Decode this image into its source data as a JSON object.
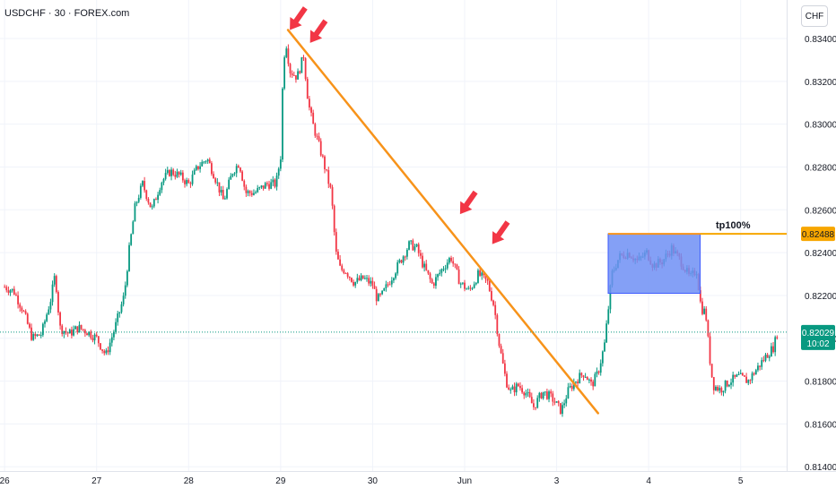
{
  "header": {
    "symbol_title": "USDCHF · 30 · FOREX.com",
    "currency": "CHF"
  },
  "chart_data": {
    "type": "candlestick",
    "y_ticks": [
      "0.81400",
      "0.81600",
      "0.81800",
      "0.82000",
      "0.82200",
      "0.82400",
      "0.82600",
      "0.82800",
      "0.83000",
      "0.83200",
      "0.83400"
    ],
    "ylim": [
      0.8138,
      0.8358
    ],
    "x_ticks": [
      "26",
      "27",
      "28",
      "29",
      "30",
      "Jun",
      "3",
      "4",
      "5"
    ],
    "x_tick_days": [
      0,
      1,
      2,
      3,
      4,
      5,
      6,
      7,
      8
    ],
    "xlim": [
      -0.05,
      8.5
    ],
    "grid": true,
    "colors": {
      "up": "#089981",
      "down": "#f23645",
      "trendline": "#f7931a",
      "arrows": "#f23645",
      "zone_fill": "#6f8ff5",
      "zone_border": "#f7931a",
      "price_badge": "#089981",
      "tp_badge": "#f7a600"
    },
    "close_path": [
      [
        0.0,
        0.8224
      ],
      [
        0.1,
        0.8222
      ],
      [
        0.2,
        0.8213
      ],
      [
        0.3,
        0.82
      ],
      [
        0.4,
        0.8202
      ],
      [
        0.5,
        0.8218
      ],
      [
        0.55,
        0.823
      ],
      [
        0.6,
        0.8205
      ],
      [
        0.7,
        0.8202
      ],
      [
        0.8,
        0.8205
      ],
      [
        0.9,
        0.8203
      ],
      [
        1.0,
        0.82
      ],
      [
        1.1,
        0.8192
      ],
      [
        1.2,
        0.8205
      ],
      [
        1.3,
        0.822
      ],
      [
        1.35,
        0.824
      ],
      [
        1.42,
        0.8262
      ],
      [
        1.5,
        0.8272
      ],
      [
        1.6,
        0.826
      ],
      [
        1.7,
        0.8273
      ],
      [
        1.8,
        0.8278
      ],
      [
        1.9,
        0.8276
      ],
      [
        2.0,
        0.8272
      ],
      [
        2.1,
        0.828
      ],
      [
        2.2,
        0.8284
      ],
      [
        2.28,
        0.8276
      ],
      [
        2.38,
        0.8264
      ],
      [
        2.48,
        0.8278
      ],
      [
        2.55,
        0.8282
      ],
      [
        2.62,
        0.8268
      ],
      [
        2.72,
        0.8268
      ],
      [
        2.85,
        0.8272
      ],
      [
        2.95,
        0.8272
      ],
      [
        3.0,
        0.8285
      ],
      [
        3.03,
        0.833
      ],
      [
        3.06,
        0.8338
      ],
      [
        3.1,
        0.8325
      ],
      [
        3.18,
        0.8322
      ],
      [
        3.25,
        0.8332
      ],
      [
        3.3,
        0.831
      ],
      [
        3.35,
        0.83
      ],
      [
        3.45,
        0.8285
      ],
      [
        3.55,
        0.8268
      ],
      [
        3.6,
        0.824
      ],
      [
        3.65,
        0.8232
      ],
      [
        3.7,
        0.8232
      ],
      [
        3.8,
        0.8226
      ],
      [
        3.9,
        0.8228
      ],
      [
        4.0,
        0.8225
      ],
      [
        4.05,
        0.8218
      ],
      [
        4.1,
        0.822
      ],
      [
        4.2,
        0.8228
      ],
      [
        4.3,
        0.8236
      ],
      [
        4.4,
        0.8244
      ],
      [
        4.48,
        0.8242
      ],
      [
        4.55,
        0.8234
      ],
      [
        4.65,
        0.8225
      ],
      [
        4.75,
        0.8232
      ],
      [
        4.85,
        0.8238
      ],
      [
        4.95,
        0.8226
      ],
      [
        5.05,
        0.8222
      ],
      [
        5.15,
        0.823
      ],
      [
        5.25,
        0.8226
      ],
      [
        5.32,
        0.8215
      ],
      [
        5.38,
        0.8196
      ],
      [
        5.45,
        0.818
      ],
      [
        5.5,
        0.8175
      ],
      [
        5.58,
        0.8178
      ],
      [
        5.66,
        0.8175
      ],
      [
        5.75,
        0.8168
      ],
      [
        5.85,
        0.8175
      ],
      [
        5.95,
        0.8172
      ],
      [
        6.05,
        0.8166
      ],
      [
        6.12,
        0.8175
      ],
      [
        6.2,
        0.818
      ],
      [
        6.3,
        0.8184
      ],
      [
        6.38,
        0.8178
      ],
      [
        6.45,
        0.8184
      ],
      [
        6.52,
        0.8197
      ],
      [
        6.56,
        0.8213
      ],
      [
        6.6,
        0.823
      ],
      [
        6.68,
        0.8238
      ],
      [
        6.78,
        0.824
      ],
      [
        6.88,
        0.8236
      ],
      [
        6.98,
        0.824
      ],
      [
        7.05,
        0.8234
      ],
      [
        7.15,
        0.8236
      ],
      [
        7.25,
        0.8242
      ],
      [
        7.35,
        0.8236
      ],
      [
        7.45,
        0.8228
      ],
      [
        7.52,
        0.8232
      ],
      [
        7.57,
        0.8214
      ],
      [
        7.62,
        0.8212
      ],
      [
        7.66,
        0.8192
      ],
      [
        7.7,
        0.8178
      ],
      [
        7.78,
        0.8176
      ],
      [
        7.88,
        0.818
      ],
      [
        7.98,
        0.8182
      ],
      [
        8.08,
        0.818
      ],
      [
        8.18,
        0.8186
      ],
      [
        8.28,
        0.8192
      ],
      [
        8.36,
        0.8196
      ],
      [
        8.4,
        0.8203
      ]
    ],
    "trendline": {
      "from": [
        3.08,
        0.8344
      ],
      "to": [
        6.45,
        0.8165
      ]
    },
    "arrows_at": [
      [
        3.1,
        0.8344
      ],
      [
        3.32,
        0.8338
      ],
      [
        4.95,
        0.8258
      ],
      [
        5.3,
        0.8244
      ]
    ],
    "zone": {
      "x_from": 6.56,
      "x_to": 7.56,
      "y_from": 0.8221,
      "y_to": 0.82488
    },
    "tp_line": {
      "price": 0.82488,
      "label": "tp100%",
      "price_label": "0.82488"
    },
    "current": {
      "price": 0.82029,
      "price_label": "0.82029",
      "countdown": "10:02"
    }
  }
}
